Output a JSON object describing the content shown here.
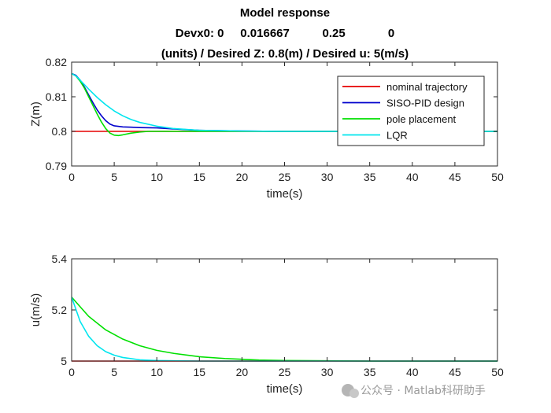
{
  "title_lines": [
    "Model response",
    "Devx0: 0     0.016667          0.25             0",
    "(units) / Desired Z: 0.8(m) / Desired u: 5(m/s)"
  ],
  "watermark": "公众号 · Matlab科研助手",
  "chart_data": [
    {
      "type": "line",
      "xlabel": "time(s)",
      "ylabel": "Z(m)",
      "xlim": [
        0,
        50
      ],
      "ylim": [
        0.79,
        0.82
      ],
      "xticks": [
        0,
        5,
        10,
        15,
        20,
        25,
        30,
        35,
        40,
        45,
        50
      ],
      "yticks": [
        0.79,
        0.8,
        0.81,
        0.82
      ],
      "ytick_labels": [
        "0.79",
        "0.8",
        "0.81",
        "0.82"
      ],
      "grid": false,
      "legend": "top-right",
      "series": [
        {
          "name": "nominal trajectory",
          "color": "#e60000",
          "x": [
            0,
            50
          ],
          "y": [
            0.8,
            0.8
          ]
        },
        {
          "name": "SISO-PID design",
          "color": "#0000cc",
          "x": [
            0,
            0.5,
            1,
            1.5,
            2,
            2.5,
            3,
            3.5,
            4,
            4.5,
            5,
            6,
            7,
            8,
            10,
            12,
            15,
            20,
            25,
            30,
            35,
            40,
            45,
            50
          ],
          "y": [
            0.8167,
            0.8162,
            0.8148,
            0.8128,
            0.8105,
            0.8083,
            0.8062,
            0.8045,
            0.8031,
            0.8021,
            0.8016,
            0.8013,
            0.8012,
            0.8011,
            0.801,
            0.8007,
            0.8003,
            0.8001,
            0.8,
            0.8,
            0.8,
            0.8,
            0.8,
            0.8
          ]
        },
        {
          "name": "pole placement",
          "color": "#00e000",
          "x": [
            0,
            0.5,
            1,
            1.5,
            2,
            2.5,
            3,
            3.5,
            4,
            4.5,
            5,
            5.5,
            6,
            7,
            8,
            9,
            10,
            12,
            15,
            20,
            25,
            30,
            35,
            40,
            45,
            50
          ],
          "y": [
            0.8167,
            0.816,
            0.8145,
            0.8125,
            0.81,
            0.8075,
            0.805,
            0.8027,
            0.8008,
            0.7995,
            0.7989,
            0.7988,
            0.799,
            0.7995,
            0.7998,
            0.8,
            0.8,
            0.8,
            0.8,
            0.8,
            0.8,
            0.8,
            0.8,
            0.8,
            0.8,
            0.8
          ]
        },
        {
          "name": "LQR",
          "color": "#00e5ee",
          "x": [
            0,
            0.5,
            1,
            2,
            3,
            4,
            5,
            6,
            7,
            8,
            10,
            12,
            15,
            20,
            25,
            30,
            35,
            40,
            45,
            50
          ],
          "y": [
            0.8167,
            0.816,
            0.8148,
            0.8122,
            0.8098,
            0.8077,
            0.8059,
            0.8045,
            0.8034,
            0.8026,
            0.8015,
            0.8008,
            0.8003,
            0.8001,
            0.8,
            0.8,
            0.8,
            0.8,
            0.8,
            0.8
          ]
        }
      ]
    },
    {
      "type": "line",
      "xlabel": "time(s)",
      "ylabel": "u(m/s)",
      "xlim": [
        0,
        50
      ],
      "ylim": [
        5,
        5.4
      ],
      "xticks": [
        0,
        5,
        10,
        15,
        20,
        25,
        30,
        35,
        40,
        45,
        50
      ],
      "yticks": [
        5,
        5.2,
        5.4
      ],
      "ytick_labels": [
        "5",
        "5.2",
        "5.4"
      ],
      "grid": false,
      "series": [
        {
          "color": "#e60000",
          "x": [
            0,
            50
          ],
          "y": [
            5,
            5
          ]
        },
        {
          "color": "#00e000",
          "x": [
            0,
            2,
            4,
            6,
            8,
            10,
            12,
            15,
            18,
            20,
            22,
            25,
            30,
            35,
            40,
            45,
            50
          ],
          "y": [
            5.25,
            5.175,
            5.122,
            5.086,
            5.06,
            5.042,
            5.03,
            5.017,
            5.01,
            5.007,
            5.004,
            5.002,
            5.001,
            5,
            5,
            5,
            5
          ]
        },
        {
          "color": "#00e5ee",
          "x": [
            0,
            1,
            2,
            3,
            4,
            5,
            6,
            8,
            10,
            12,
            15,
            20,
            25,
            30,
            35,
            40,
            45,
            50
          ],
          "y": [
            5.25,
            5.155,
            5.097,
            5.06,
            5.037,
            5.023,
            5.014,
            5.005,
            5.002,
            5.001,
            5,
            5,
            5,
            5,
            5,
            5,
            5,
            5
          ]
        }
      ]
    }
  ]
}
